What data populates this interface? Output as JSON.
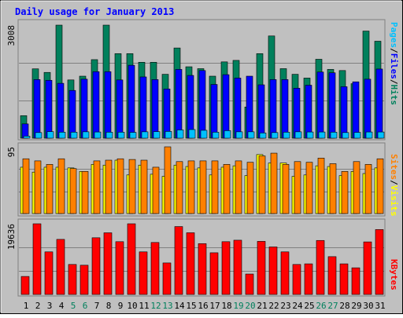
{
  "title": "Daily usage for January 2013",
  "days": [
    "1",
    "2",
    "3",
    "4",
    "5",
    "6",
    "7",
    "8",
    "9",
    "10",
    "11",
    "12",
    "13",
    "14",
    "15",
    "16",
    "17",
    "18",
    "19",
    "20",
    "21",
    "22",
    "23",
    "24",
    "25",
    "26",
    "27",
    "28",
    "29",
    "30",
    "31"
  ],
  "weekend_days": [
    "5",
    "6",
    "12",
    "13",
    "19",
    "20",
    "26",
    "27"
  ],
  "colors": {
    "background": "#c0c0c0",
    "title": "#0000ff",
    "hits": "#00805c",
    "files": "#0000ff",
    "pages": "#00c0ff",
    "visits": "#ffff00",
    "sites": "#ff8000",
    "kbytes": "#ff0000",
    "weekday_label": "#000000",
    "weekend_label": "#00805c"
  },
  "chart_data": [
    {
      "type": "bar",
      "panel": "requests",
      "categories": [
        "1",
        "2",
        "3",
        "4",
        "5",
        "6",
        "7",
        "8",
        "9",
        "10",
        "11",
        "12",
        "13",
        "14",
        "15",
        "16",
        "17",
        "18",
        "19",
        "20",
        "21",
        "22",
        "23",
        "24",
        "25",
        "26",
        "27",
        "28",
        "29",
        "30",
        "31"
      ],
      "max_label": "3008",
      "ylim": [
        0,
        3008
      ],
      "legend": [
        {
          "label": "Pages",
          "color": "#00c0ff"
        },
        {
          "label": "/",
          "color": "#000000"
        },
        {
          "label": "Files",
          "color": "#0000ff"
        },
        {
          "label": "/",
          "color": "#000000"
        },
        {
          "label": "Hits",
          "color": "#00805c"
        }
      ],
      "series": [
        {
          "name": "Hits",
          "values": [
            600,
            1845,
            1750,
            3008,
            1550,
            1650,
            2090,
            3008,
            2250,
            2250,
            2020,
            2020,
            1700,
            2400,
            1900,
            1850,
            1650,
            2030,
            2070,
            830,
            2250,
            2720,
            1850,
            1700,
            1600,
            2100,
            1830,
            1800,
            1450,
            2850,
            2580
          ]
        },
        {
          "name": "Files",
          "values": [
            380,
            1560,
            1540,
            1460,
            1270,
            1570,
            1770,
            1770,
            1550,
            1940,
            1630,
            1560,
            1310,
            1830,
            1670,
            1800,
            1430,
            1690,
            1600,
            1650,
            1420,
            1560,
            1560,
            1330,
            1410,
            1760,
            1740,
            1370,
            1500,
            1570,
            1840
          ]
        },
        {
          "name": "Pages",
          "values": [
            55,
            150,
            175,
            160,
            160,
            170,
            165,
            160,
            160,
            155,
            170,
            175,
            180,
            220,
            230,
            210,
            160,
            200,
            170,
            170,
            140,
            150,
            160,
            170,
            165,
            165,
            160,
            150,
            155,
            165,
            165
          ]
        }
      ]
    },
    {
      "type": "bar",
      "panel": "visitors",
      "categories": [
        "1",
        "2",
        "3",
        "4",
        "5",
        "6",
        "7",
        "8",
        "9",
        "10",
        "11",
        "12",
        "13",
        "14",
        "15",
        "16",
        "17",
        "18",
        "19",
        "20",
        "21",
        "22",
        "23",
        "24",
        "25",
        "26",
        "27",
        "28",
        "29",
        "30",
        "31"
      ],
      "max_label": "95",
      "ylim": [
        0,
        95
      ],
      "legend": [
        {
          "label": "Sites",
          "color": "#ff8000"
        },
        {
          "label": "/",
          "color": "#000000"
        },
        {
          "label": "Visits",
          "color": "#ffff00"
        }
      ],
      "series": [
        {
          "name": "Visits",
          "values": [
            66,
            59,
            66,
            66,
            65,
            60,
            70,
            69,
            76,
            55,
            69,
            56,
            53,
            69,
            67,
            65,
            55,
            66,
            68,
            54,
            84,
            72,
            72,
            53,
            55,
            68,
            67,
            54,
            60,
            57,
            65
          ]
        },
        {
          "name": "Sites",
          "values": [
            78,
            75,
            70,
            78,
            64,
            60,
            75,
            76,
            78,
            77,
            76,
            66,
            95,
            74,
            75,
            75,
            75,
            70,
            75,
            73,
            82,
            86,
            70,
            74,
            73,
            79,
            71,
            60,
            74,
            70,
            78
          ]
        }
      ]
    },
    {
      "type": "bar",
      "panel": "kbytes",
      "categories": [
        "1",
        "2",
        "3",
        "4",
        "5",
        "6",
        "7",
        "8",
        "9",
        "10",
        "11",
        "12",
        "13",
        "14",
        "15",
        "16",
        "17",
        "18",
        "19",
        "20",
        "21",
        "22",
        "23",
        "24",
        "25",
        "26",
        "27",
        "28",
        "29",
        "30",
        "31"
      ],
      "max_label": "19636",
      "ylim": [
        0,
        19636
      ],
      "legend": [
        {
          "label": "KBytes",
          "color": "#ff0000"
        }
      ],
      "series": [
        {
          "name": "KBytes",
          "values": [
            5000,
            19636,
            11830,
            15300,
            8330,
            8120,
            15750,
            17130,
            14660,
            19636,
            11830,
            14440,
            8750,
            18860,
            17140,
            14120,
            11580,
            14660,
            15070,
            5670,
            14750,
            13200,
            11830,
            8330,
            8500,
            15000,
            10500,
            8500,
            7400,
            14600,
            18030
          ]
        }
      ]
    }
  ]
}
